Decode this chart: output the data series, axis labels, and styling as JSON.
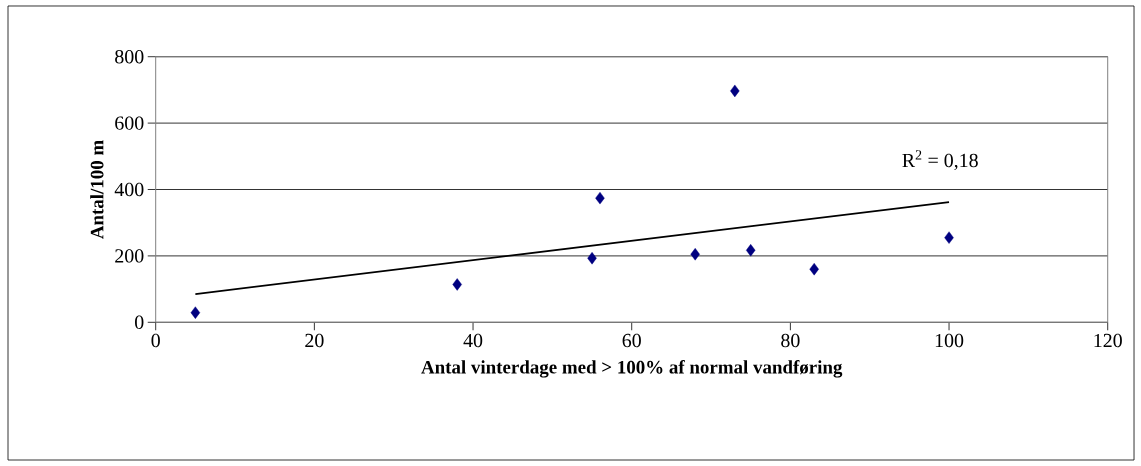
{
  "chart_data": {
    "type": "scatter",
    "xlabel": "Antal vinterdage med > 100% af normal vandføring",
    "ylabel": "Antal/100 m",
    "annotations": [
      "R$^{2}$ = 0,18"
    ],
    "series": [
      {
        "color": "#000080",
        "marker": "diamond",
        "x": [
          5,
          38,
          55,
          56,
          68,
          73,
          75,
          83,
          100
        ],
        "values": [
          29,
          114,
          193,
          374,
          205,
          697,
          217,
          160,
          255
        ]
      },
      {
        "type": "line",
        "color": "#000000",
        "marker": "none",
        "x": [
          5,
          100
        ],
        "values": [
          85,
          362
        ]
      }
    ],
    "xlim": [
      0,
      120
    ],
    "ylim": [
      0,
      800
    ],
    "xticks": [
      0,
      20,
      40,
      60,
      80,
      100,
      120
    ],
    "yticks": [
      0,
      200,
      400,
      600,
      800
    ],
    "grid": "y"
  }
}
